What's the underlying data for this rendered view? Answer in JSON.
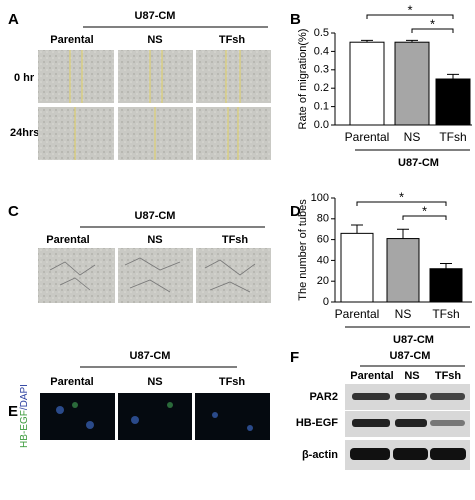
{
  "chart_data": [
    {
      "type": "bar",
      "panel": "B",
      "ylabel": "Rate of migration(%)",
      "group_label": "U87-CM",
      "categories": [
        "Parental",
        "NS",
        "TFsh"
      ],
      "values": [
        0.45,
        0.45,
        0.25
      ],
      "errors": [
        0.01,
        0.01,
        0.025
      ],
      "colors": [
        "#ffffff",
        "#a6a6a6",
        "#000000"
      ],
      "ylim": [
        0,
        0.5
      ],
      "yticks": [
        {
          "value": 0,
          "label": "0.0"
        },
        0.1,
        0.2,
        0.3,
        0.4,
        0.5
      ],
      "annotations": [
        "*",
        "*"
      ]
    },
    {
      "type": "bar",
      "panel": "D",
      "ylabel": "The number of tubes",
      "group_label": "U87-CM",
      "categories": [
        "Parental",
        "NS",
        "TFsh"
      ],
      "values": [
        66,
        61,
        32
      ],
      "errors": [
        8,
        9,
        5
      ],
      "colors": [
        "#ffffff",
        "#a6a6a6",
        "#000000"
      ],
      "ylim": [
        0,
        100
      ],
      "yticks": [
        0,
        20,
        40,
        60,
        80,
        100
      ],
      "annotations": [
        "*",
        "*"
      ]
    }
  ],
  "panel_a": {
    "label": "A",
    "group": "U87-CM",
    "columns": [
      "Parental",
      "NS",
      "TFsh"
    ],
    "rows": [
      "0 hr",
      "24hrs"
    ]
  },
  "panel_c": {
    "label": "C",
    "group": "U87-CM",
    "columns": [
      "Parental",
      "NS",
      "TFsh"
    ]
  },
  "panel_e": {
    "label": "E",
    "group": "U87-CM",
    "columns": [
      "Parental",
      "NS",
      "TFsh"
    ],
    "stain": [
      "HB-EGF",
      "/DAPI"
    ]
  },
  "panel_f": {
    "label": "F",
    "group": "U87-CM",
    "columns": [
      "Parental",
      "NS",
      "TFsh"
    ],
    "rows": [
      "PAR2",
      "HB-EGF",
      "β-actin"
    ]
  }
}
